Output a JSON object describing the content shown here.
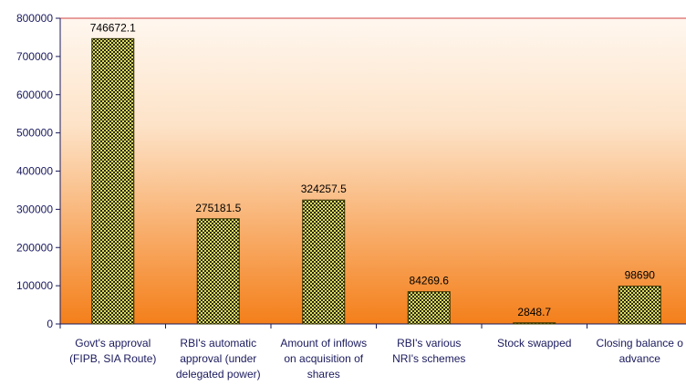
{
  "chart_data": {
    "type": "bar",
    "categories": [
      [
        "Govt's approval",
        "(FIPB, SIA Route)"
      ],
      [
        "RBI's automatic",
        "approval (under",
        "delegated power)"
      ],
      [
        "Amount of inflows",
        "on acquisition of",
        "shares"
      ],
      [
        "RBI's various",
        "NRI's schemes"
      ],
      [
        "Stock swapped"
      ],
      [
        "Closing balance o",
        "advance"
      ]
    ],
    "values": [
      746672.1,
      275181.5,
      324257.5,
      84269.6,
      2848.7,
      98690
    ],
    "data_labels": [
      "746672.1",
      "275181.5",
      "324257.5",
      "84269.6",
      "2848.7",
      "98690"
    ],
    "yticks": [
      "0",
      "100000",
      "200000",
      "300000",
      "400000",
      "500000",
      "600000",
      "700000",
      "800000"
    ],
    "ylim": [
      0,
      800000
    ],
    "grid": false,
    "colors": {
      "bar_fill": "#d9d96a",
      "bar_pattern": "#2a2a00",
      "bar_stroke": "#333300",
      "axis": "#1a1a5e",
      "bg_top": "#fff7ef",
      "bg_bottom": "#f47f1a",
      "top_border": "#d04040"
    }
  }
}
